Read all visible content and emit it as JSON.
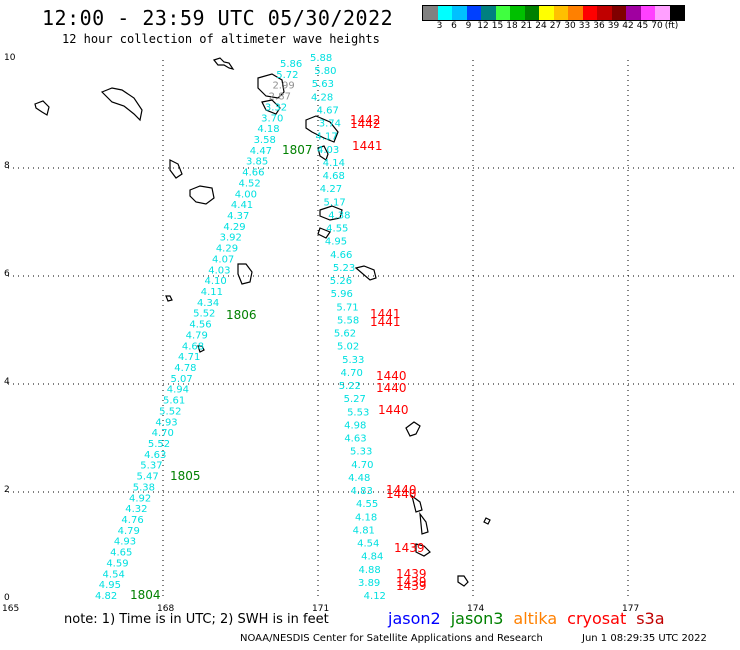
{
  "header": {
    "title": "12:00 - 23:59 UTC 05/30/2022",
    "subtitle": "12 hour collection of altimeter wave heights"
  },
  "colorbar": {
    "colors": [
      "#808080",
      "#00ffff",
      "#00c0ff",
      "#0040ff",
      "#008080",
      "#40ff40",
      "#00c000",
      "#008000",
      "#ffff00",
      "#ffc000",
      "#ff8000",
      "#ff0000",
      "#c00000",
      "#800000",
      "#a000a0",
      "#ff40ff",
      "#ffa0ff",
      "#000000"
    ],
    "labels": [
      "3",
      "6",
      "9",
      "12",
      "15",
      "18",
      "21",
      "24",
      "27",
      "30",
      "33",
      "36",
      "39",
      "42",
      "45",
      "70",
      "(ft)"
    ]
  },
  "map": {
    "lon_ticks": [
      "165",
      "168",
      "171",
      "174",
      "177"
    ],
    "lat_ticks": [
      "0",
      "2",
      "4",
      "6",
      "8",
      "10"
    ],
    "colors": {
      "cyan": "#00e0e0",
      "gray": "#909090",
      "green": "#008000",
      "red": "#ff0000"
    },
    "track_a": [
      "5.86",
      "5.72",
      "2.99",
      "2.87",
      "3.32",
      "3.70",
      "4.18",
      "3.58",
      "4.47",
      "3.85",
      "4.66",
      "4.52",
      "4.00",
      "4.41",
      "4.37",
      "4.29",
      "3.92",
      "4.29",
      "4.07",
      "4.03",
      "4.10",
      "4.11",
      "4.34",
      "5.52",
      "4.56",
      "4.79",
      "4.68",
      "4.71",
      "4.78",
      "5.07",
      "4.94",
      "5.61",
      "5.52",
      "4.93",
      "4.70",
      "5.52",
      "4.63",
      "5.37",
      "5.47",
      "5.38",
      "4.92",
      "4.32",
      "4.76",
      "4.79",
      "4.93",
      "4.65",
      "4.59",
      "4.54",
      "4.95",
      "4.82"
    ],
    "track_b": [
      "5.88",
      "5.80",
      "5.63",
      "4.28",
      "4.67",
      "3.74",
      "4.17",
      "4.03",
      "4.14",
      "4.68",
      "4.27",
      "5.17",
      "4.38",
      "4.55",
      "4.95",
      "4.66",
      "5.23",
      "5.26",
      "5.96",
      "5.71",
      "5.58",
      "5.62",
      "5.02",
      "5.33",
      "4.70",
      "5.22",
      "5.27",
      "5.53",
      "4.98",
      "4.63",
      "5.33",
      "4.70",
      "4.48",
      "4.83",
      "4.55",
      "4.18",
      "4.81",
      "4.54",
      "4.84",
      "4.88",
      "3.89",
      "4.12"
    ],
    "time_labels_green": [
      "1807",
      "1806",
      "1805",
      "1804"
    ],
    "time_labels_red": [
      "1442",
      "1442",
      "1441",
      "1441",
      "1441",
      "1440",
      "1440",
      "1440",
      "1440",
      "1440",
      "1439",
      "1439",
      "1439",
      "1439"
    ]
  },
  "footer": {
    "note": "note: 1) Time is in UTC; 2) SWH is in feet",
    "satellites": [
      {
        "name": "jason2",
        "color": "#0000ff"
      },
      {
        "name": "jason3",
        "color": "#008000"
      },
      {
        "name": "altika",
        "color": "#ff8000"
      },
      {
        "name": "cryosat",
        "color": "#ff0000"
      },
      {
        "name": "s3a",
        "color": "#c00000"
      }
    ],
    "credit": "NOAA/NESDIS Center for Satellite Applications and Research",
    "timestamp": "Jun  1 08:29:35 UTC 2022"
  }
}
